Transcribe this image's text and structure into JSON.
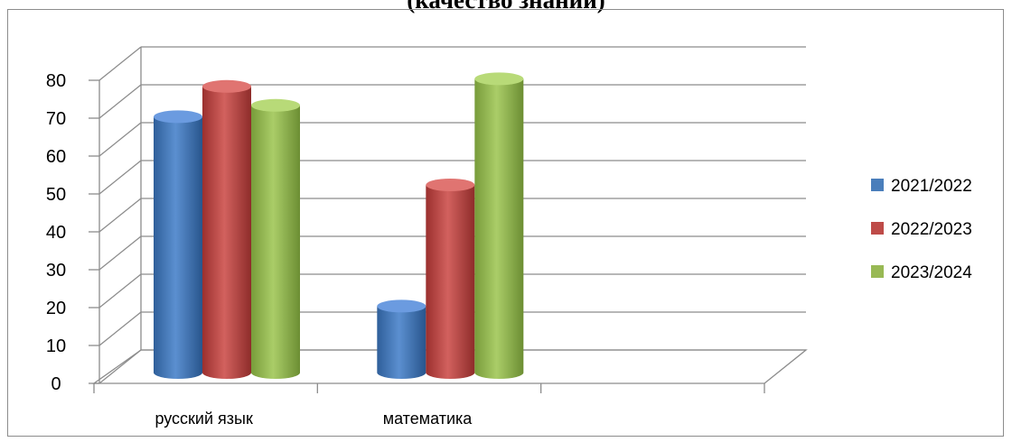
{
  "chart_data": {
    "type": "bar",
    "title": "(качество знаний)",
    "categories": [
      "русский язык",
      "математика",
      ""
    ],
    "series": [
      {
        "name": "2021/2022",
        "color": "#4a7ebb",
        "values": [
          68,
          18,
          null
        ]
      },
      {
        "name": "2022/2023",
        "color": "#be4b48",
        "values": [
          76,
          50,
          null
        ]
      },
      {
        "name": "2023/2024",
        "color": "#98b954",
        "values": [
          71,
          78,
          null
        ]
      }
    ],
    "ylim": [
      0,
      80
    ],
    "yticks": [
      0,
      10,
      20,
      30,
      40,
      50,
      60,
      70,
      80
    ],
    "grid": true,
    "legend_position": "right",
    "style": "3d-cylinder"
  }
}
